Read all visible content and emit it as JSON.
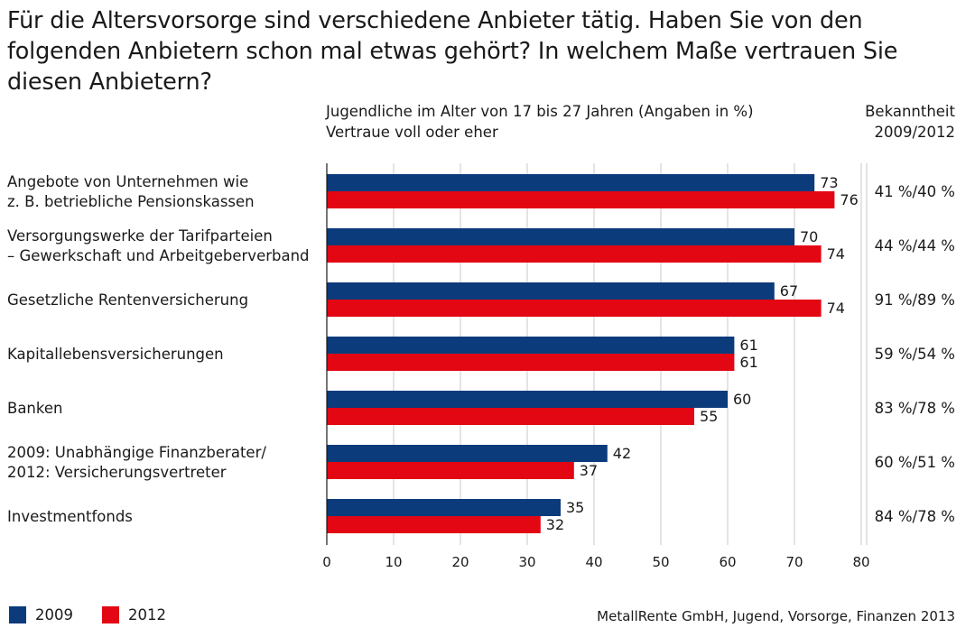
{
  "title": "Für die Altersvorsorge sind verschiedene Anbieter tätig. Haben Sie von den folgenden Anbietern schon mal etwas gehört? In welchem Maße vertrauen Sie diesen Anbietern?",
  "subtitle_line1": "Jugendliche im Alter von 17 bis 27 Jahren (Angaben in %)",
  "subtitle_line2": "Vertraue voll oder eher",
  "known_header_line1": "Bekanntheit",
  "known_header_line2": "2009/2012",
  "source": "MetallRente GmbH, Jugend, Vorsorge, Finanzen 2013",
  "legend": [
    {
      "label": "2009",
      "color": "#0c3b7c"
    },
    {
      "label": "2012",
      "color": "#e30613"
    }
  ],
  "chart_data": {
    "type": "bar",
    "orientation": "horizontal",
    "categories": [
      [
        "Angebote von Unternehmen wie",
        "z. B. betriebliche Pensionskassen"
      ],
      [
        "Versorgungswerke der Tarifparteien",
        "– Gewerkschaft und Arbeitgeberverband"
      ],
      [
        "Gesetzliche Rentenversicherung"
      ],
      [
        "Kapitallebensversicherungen"
      ],
      [
        "Banken"
      ],
      [
        "2009: Unabhängige Finanzberater/",
        "2012: Versicherungsvertreter"
      ],
      [
        "Investmentfonds"
      ]
    ],
    "series": [
      {
        "name": "2009",
        "color": "#0c3b7c",
        "values": [
          73,
          70,
          67,
          61,
          60,
          42,
          35
        ]
      },
      {
        "name": "2012",
        "color": "#e30613",
        "values": [
          76,
          74,
          74,
          61,
          55,
          37,
          32
        ]
      }
    ],
    "bekanntheit": [
      "41 %/40 %",
      "44 %/44 %",
      "91 %/89 %",
      "59 %/54 %",
      "83 %/78 %",
      "60 %/51 %",
      "84 %/78 %"
    ],
    "xlim": [
      0,
      80
    ],
    "xticks": [
      0,
      10,
      20,
      30,
      40,
      50,
      60,
      70,
      80
    ],
    "grid": true,
    "legend_position": "bottom-left"
  }
}
